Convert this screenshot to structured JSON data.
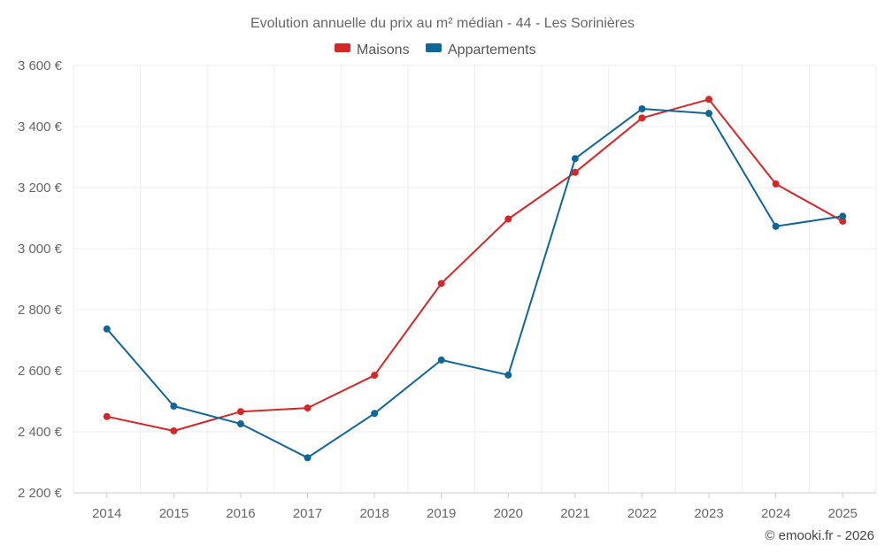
{
  "chart_data": {
    "type": "line",
    "title": "Evolution annuelle du prix au m² médian - 44 - Les Sorinières",
    "categories": [
      "2014",
      "2015",
      "2016",
      "2017",
      "2018",
      "2019",
      "2020",
      "2021",
      "2022",
      "2023",
      "2024",
      "2025"
    ],
    "series": [
      {
        "name": "Maisons",
        "color": "#d62728",
        "values": [
          2450,
          2403,
          2466,
          2478,
          2585,
          2886,
          3097,
          3250,
          3428,
          3489,
          3212,
          3090
        ]
      },
      {
        "name": "Appartements",
        "color": "#0e6699",
        "values": [
          2737,
          2484,
          2426,
          2315,
          2460,
          2635,
          2586,
          3295,
          3458,
          3443,
          3073,
          3106
        ]
      }
    ],
    "yticks": [
      2200,
      2400,
      2600,
      2800,
      3000,
      3200,
      3400,
      3600
    ],
    "ytick_labels": [
      "2 200 €",
      "2 400 €",
      "2 600 €",
      "2 800 €",
      "3 000 €",
      "3 200 €",
      "3 400 €",
      "3 600 €"
    ],
    "ylim": [
      2200,
      3600
    ],
    "xlabel": "",
    "ylabel": "",
    "grid": true,
    "legend_position": "top-center"
  },
  "credit": "© emooki.fr - 2026"
}
